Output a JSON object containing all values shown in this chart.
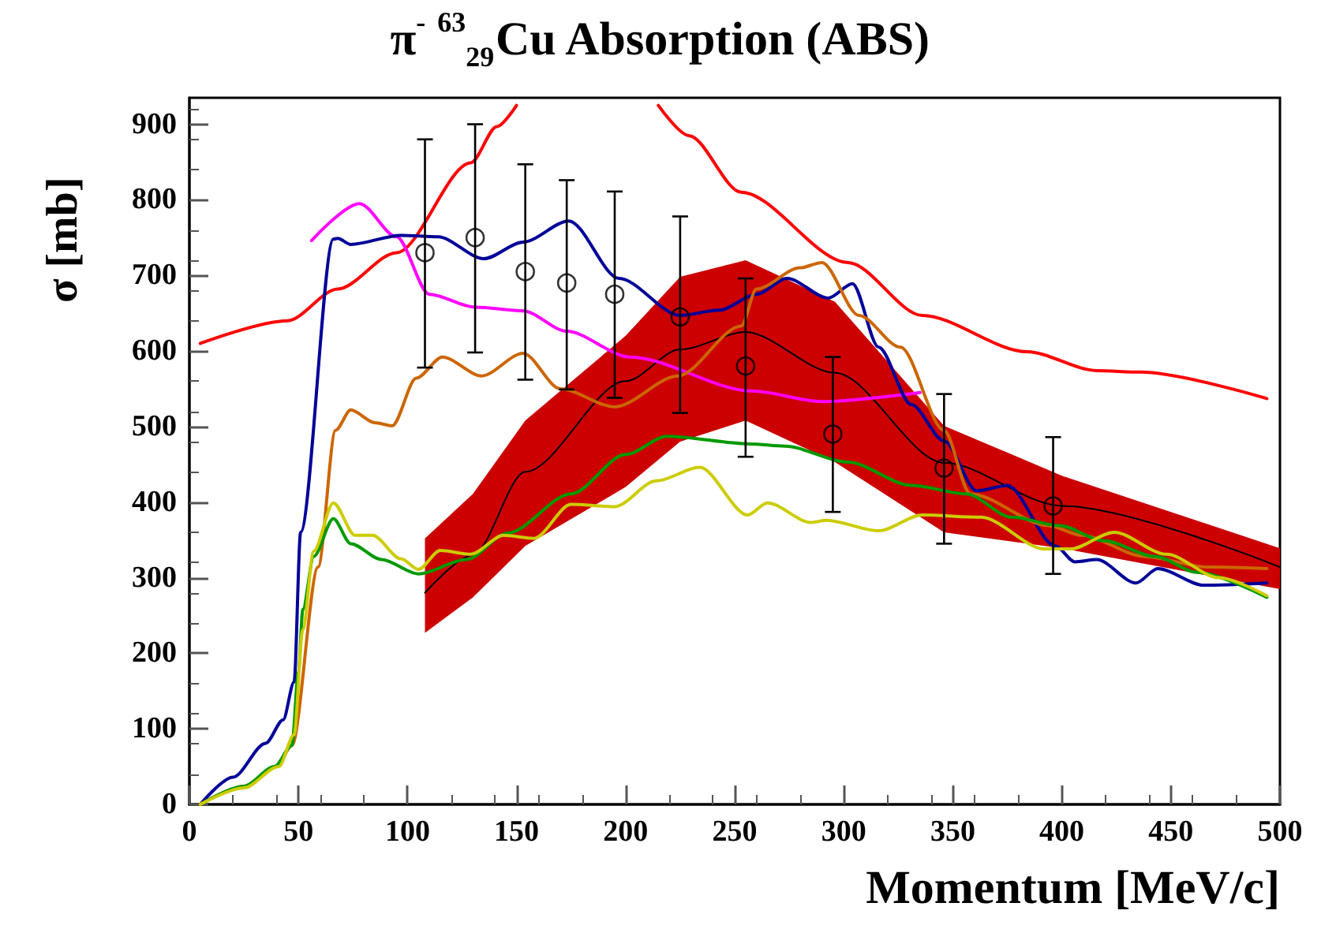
{
  "chart_data": {
    "type": "line",
    "title": "π$^{-}$ $^{63}$$_{29}$Cu Absorption (ABS)",
    "xlabel": "Momentum [MeV/c]",
    "ylabel": "σ [mb]",
    "xlim": [
      0,
      500
    ],
    "xticks": [
      0,
      50,
      100,
      150,
      200,
      250,
      300,
      350,
      400,
      450,
      500
    ],
    "ylim": [
      0,
      935
    ],
    "yticks": [
      0,
      100,
      200,
      300,
      400,
      500,
      600,
      700,
      800,
      900
    ],
    "grid": false,
    "marker": "none",
    "line_style": "solid",
    "series": [
      {
        "type": "line",
        "color": "#000000",
        "x": [
          108,
          130,
          154,
          200,
          225,
          255,
          296,
          346,
          400,
          500
        ],
        "values": [
          280,
          330,
          440,
          560,
          602,
          625,
          571,
          452,
          395,
          314
        ],
        "lower": [
          227,
          274,
          342,
          420,
          480,
          508,
          453,
          360,
          339,
          285
        ],
        "upper": [
          352,
          411,
          508,
          620,
          698,
          720,
          665,
          501,
          435,
          339
        ]
      },
      {
        "color": "#ff0000",
        "x": [
          5,
          45,
          68,
          95,
          129,
          141,
          150,
          180,
          215,
          229,
          253,
          302,
          336,
          384,
          416,
          436,
          494
        ],
        "values": [
          610,
          640,
          682,
          730,
          849,
          897,
          925,
          null,
          925,
          885,
          810,
          717,
          647,
          599,
          574,
          572,
          537
        ]
      },
      {
        "color": "#ff00ff",
        "x": [
          56,
          78,
          95,
          110,
          131,
          153,
          173,
          202,
          258,
          290,
          335
        ],
        "values": [
          746,
          795,
          751,
          675,
          658,
          653,
          626,
          592,
          547,
          533,
          545
        ]
      },
      {
        "color": "#000099",
        "x": [
          5,
          20,
          35,
          43,
          48,
          51,
          66,
          68,
          74,
          97,
          114,
          135,
          153,
          174,
          197,
          225,
          243,
          260,
          274,
          293,
          304,
          316,
          331,
          346,
          361,
          375,
          397,
          406,
          416,
          434,
          444,
          465,
          494
        ],
        "values": [
          0,
          36,
          81,
          112,
          162,
          360,
          748,
          749,
          741,
          753,
          751,
          722,
          744,
          772,
          696,
          647,
          654,
          675,
          696,
          670,
          689,
          605,
          529,
          481,
          415,
          422,
          342,
          321,
          324,
          293,
          312,
          290,
          293
        ]
      },
      {
        "color": "#cc6600",
        "x": [
          5,
          25,
          40,
          47,
          59,
          67,
          74,
          85,
          93,
          104,
          116,
          134,
          153,
          170,
          195,
          224,
          253,
          260,
          280,
          290,
          307,
          326,
          346,
          358,
          394,
          409,
          438,
          467,
          494
        ],
        "values": [
          0,
          24,
          50,
          78,
          314,
          495,
          522,
          505,
          501,
          564,
          592,
          567,
          597,
          550,
          526,
          567,
          633,
          682,
          710,
          717,
          647,
          605,
          495,
          411,
          369,
          356,
          328,
          314,
          312
        ]
      },
      {
        "color": "#009900",
        "x": [
          5,
          25,
          39,
          47,
          50,
          52,
          57,
          66,
          74,
          88,
          105,
          127,
          146,
          175,
          200,
          219,
          257,
          273,
          302,
          331,
          356,
          377,
          399,
          419,
          443,
          462,
          494
        ],
        "values": [
          0,
          24,
          50,
          78,
          175,
          258,
          328,
          378,
          345,
          324,
          305,
          324,
          359,
          411,
          463,
          487,
          477,
          474,
          453,
          422,
          411,
          380,
          369,
          349,
          328,
          307,
          274
        ]
      },
      {
        "color": "#cccc00",
        "x": [
          5,
          25,
          41,
          48,
          52,
          57,
          66,
          76,
          84,
          97,
          105,
          115,
          129,
          144,
          158,
          175,
          195,
          214,
          234,
          256,
          265,
          285,
          292,
          316,
          336,
          363,
          392,
          404,
          424,
          448,
          472,
          494
        ],
        "values": [
          0,
          22,
          50,
          92,
          231,
          335,
          399,
          356,
          356,
          325,
          311,
          336,
          331,
          356,
          352,
          397,
          394,
          428,
          446,
          383,
          399,
          373,
          376,
          362,
          383,
          380,
          338,
          338,
          360,
          331,
          300,
          276
        ]
      },
      {
        "type": "scatter",
        "color": "#000000",
        "marker": "circle",
        "x": [
          108,
          131,
          154,
          173,
          195,
          225,
          255,
          295,
          346,
          396
        ],
        "values": [
          730,
          750,
          705,
          690,
          675,
          645,
          580,
          490,
          445,
          395
        ],
        "errors": [
          [
            578,
            880
          ],
          [
            598,
            900
          ],
          [
            562,
            847
          ],
          [
            549,
            826
          ],
          [
            538,
            811
          ],
          [
            518,
            778
          ],
          [
            460,
            696
          ],
          [
            387,
            592
          ],
          [
            345,
            543
          ],
          [
            305,
            486
          ]
        ]
      }
    ]
  }
}
